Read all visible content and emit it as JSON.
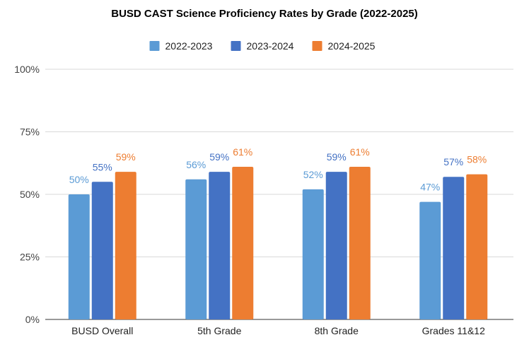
{
  "chart_data": {
    "type": "bar",
    "title": "BUSD CAST Science Proficiency Rates by Grade (2022-2025)",
    "xlabel": "",
    "ylabel": "",
    "categories": [
      "BUSD Overall",
      "5th Grade",
      "8th Grade",
      "Grades 11&12"
    ],
    "series": [
      {
        "name": "2022-2023",
        "color": "#5b9bd5",
        "values": [
          50,
          56,
          52,
          47
        ],
        "labels": [
          "50%",
          "56%",
          "52%",
          "47%"
        ]
      },
      {
        "name": "2023-2024",
        "color": "#4472c4",
        "values": [
          55,
          59,
          59,
          57
        ],
        "labels": [
          "55%",
          "59%",
          "59%",
          "57%"
        ]
      },
      {
        "name": "2024-2025",
        "color": "#ed7d31",
        "values": [
          59,
          61,
          61,
          58
        ],
        "labels": [
          "59%",
          "61%",
          "61%",
          "58%"
        ]
      }
    ],
    "ylim": [
      0,
      100
    ],
    "yticks": [
      0,
      25,
      50,
      75,
      100
    ],
    "ytick_labels": [
      "0%",
      "25%",
      "50%",
      "75%",
      "100%"
    ],
    "grid": true,
    "legend_position": "top-center"
  }
}
